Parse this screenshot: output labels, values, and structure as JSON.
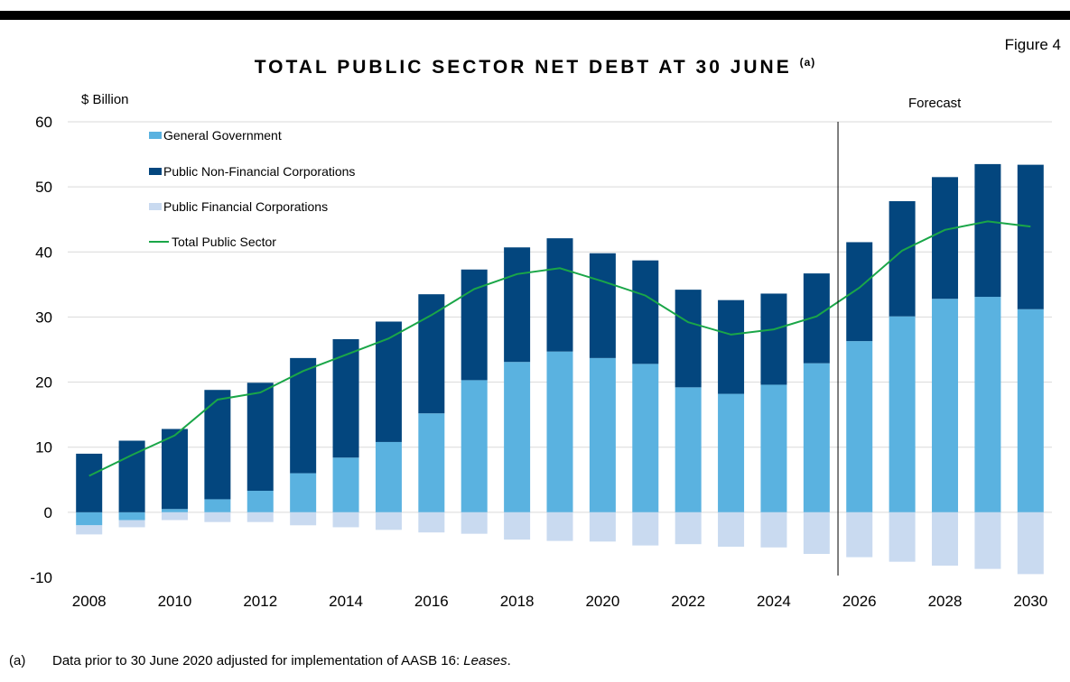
{
  "header": {
    "figure_label": "Figure 4",
    "title_main": "TOTAL PUBLIC SECTOR NET DEBT AT 30 JUNE",
    "title_sup": "(a)"
  },
  "footnote": {
    "marker": "(a)",
    "text_before": "Data prior to 30 June 2020 adjusted for implementation of AASB 16: ",
    "text_italic": "Leases",
    "text_after": "."
  },
  "colors": {
    "general_government": "#5ab2e0",
    "pnfc": "#03467e",
    "pfc": "#c9daf0",
    "total_line": "#1aa648",
    "grid": "#d9d9d9",
    "axis": "#000000"
  },
  "chart_data": {
    "type": "bar",
    "stacked": true,
    "ylabel": "$ Billion",
    "ylim": [
      -10,
      60
    ],
    "yticks": [
      -10,
      0,
      10,
      20,
      30,
      40,
      50,
      60
    ],
    "xtick_labels": [
      "2008",
      "2010",
      "2012",
      "2014",
      "2016",
      "2018",
      "2020",
      "2022",
      "2024",
      "2026",
      "2028",
      "2030"
    ],
    "grid": "horizontal",
    "legend_position": "top-left",
    "forecast_label": "Forecast",
    "forecast_divider_between": [
      "2025",
      "2026"
    ],
    "categories": [
      "2008",
      "2009",
      "2010",
      "2011",
      "2012",
      "2013",
      "2014",
      "2015",
      "2016",
      "2017",
      "2018",
      "2019",
      "2020",
      "2021",
      "2022",
      "2023",
      "2024",
      "2025",
      "2026",
      "2027",
      "2028",
      "2029",
      "2030"
    ],
    "series": [
      {
        "name": "General Government",
        "type": "bar",
        "values": [
          -2.0,
          -1.2,
          0.5,
          2.0,
          3.3,
          6.0,
          8.4,
          10.8,
          15.2,
          20.3,
          23.1,
          24.7,
          23.7,
          22.8,
          19.2,
          18.2,
          19.6,
          22.9,
          26.3,
          30.1,
          32.8,
          33.1,
          31.2
        ]
      },
      {
        "name": "Public Non-Financial Corporations",
        "type": "bar",
        "values": [
          9.0,
          11.0,
          12.3,
          16.8,
          16.6,
          17.7,
          18.2,
          18.5,
          18.3,
          17.0,
          17.6,
          17.4,
          16.1,
          15.9,
          15.0,
          14.4,
          14.0,
          13.8,
          15.2,
          17.7,
          18.7,
          20.4,
          22.2
        ]
      },
      {
        "name": "Public Financial Corporations",
        "type": "bar",
        "values": [
          -1.4,
          -1.1,
          -1.2,
          -1.5,
          -1.5,
          -2.0,
          -2.3,
          -2.7,
          -3.1,
          -3.3,
          -4.2,
          -4.4,
          -4.5,
          -5.1,
          -4.9,
          -5.3,
          -5.4,
          -6.4,
          -6.9,
          -7.6,
          -8.2,
          -8.7,
          -9.5
        ]
      },
      {
        "name": "Total Public Sector",
        "type": "line",
        "values": [
          5.6,
          8.8,
          11.8,
          17.3,
          18.4,
          21.7,
          24.2,
          26.7,
          30.3,
          34.3,
          36.6,
          37.5,
          35.5,
          33.3,
          29.2,
          27.3,
          28.1,
          30.1,
          34.5,
          40.2,
          43.4,
          44.7,
          43.9
        ]
      }
    ]
  }
}
